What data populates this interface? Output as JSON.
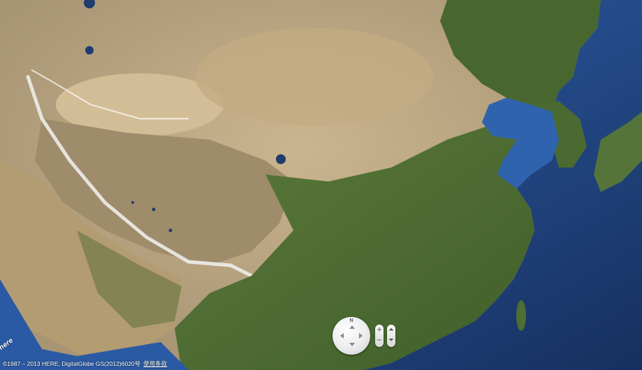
{
  "map": {
    "view": "satellite",
    "colors": {
      "ocean": "#27569e",
      "deep_ocean": "#1b3f7a",
      "desert": "#c7b089",
      "plateau": "#a99672",
      "vegetation": "#4f6f34",
      "snow": "#f2f2f2"
    }
  },
  "controls": {
    "compass_north_label": "N",
    "zoom_in_label": "+",
    "zoom_out_label": "−",
    "tilt_up_label": "⏶",
    "tilt_down_label": "⏷"
  },
  "footer": {
    "logo_text": "here",
    "copyright_text": "©1987 – 2013 HERE, DigitalGlobe GS(2012)6020号",
    "terms_link": "使用条款"
  }
}
